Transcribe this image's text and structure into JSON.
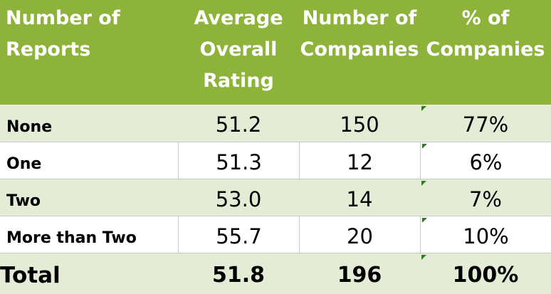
{
  "table": {
    "headers": [
      [
        "Number of",
        "Reports"
      ],
      [
        "Average",
        "Overall",
        "Rating"
      ],
      [
        "Number of",
        "Companies"
      ],
      [
        "% of",
        "Companies"
      ]
    ],
    "rows": [
      {
        "label": "None",
        "avg": "51.2",
        "count": "150",
        "pct": "77%"
      },
      {
        "label": "One",
        "avg": "51.3",
        "count": "12",
        "pct": "6%"
      },
      {
        "label": "Two",
        "avg": "53.0",
        "count": "14",
        "pct": "7%"
      },
      {
        "label": "More than Two",
        "avg": "55.7",
        "count": "20",
        "pct": "10%"
      }
    ],
    "total": {
      "label": "Total",
      "avg": "51.8",
      "count": "196",
      "pct": "100%"
    }
  },
  "colors": {
    "header_bg": "#8db33a",
    "header_text": "#ffffff",
    "stripe": "#e5ecd6",
    "error_marker": "#2f7d1f"
  }
}
